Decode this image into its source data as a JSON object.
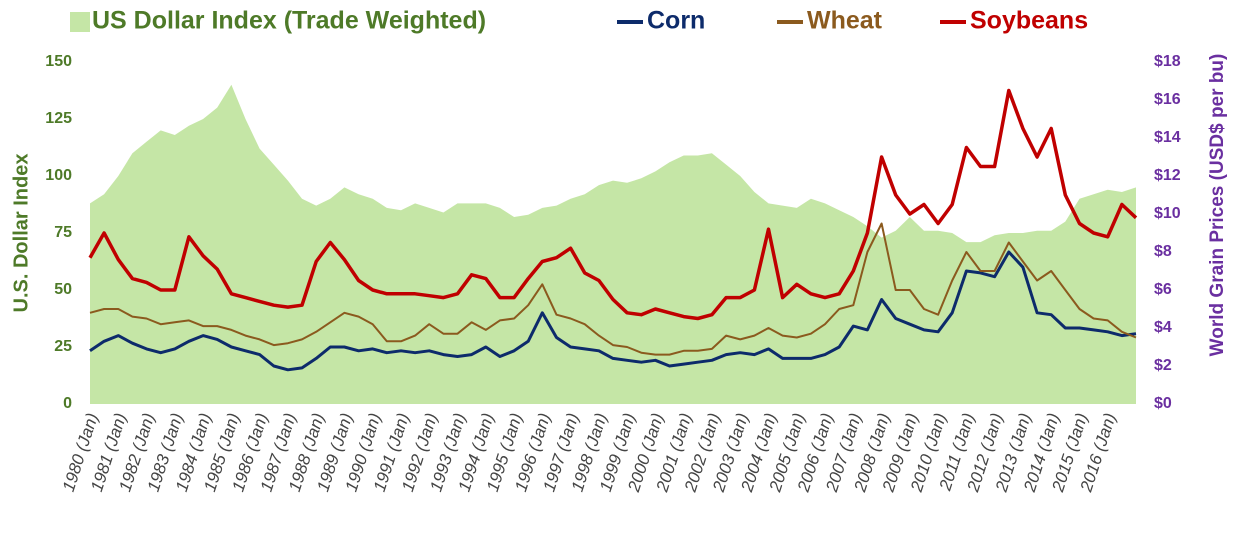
{
  "chart_data": {
    "type": "line",
    "y_label": "U.S. Dollar Index",
    "y2_label": "World Grain Prices (USD$ per bu)",
    "legend": "top",
    "grid": false,
    "categories": [
      "1980 (Jan)",
      null,
      "1981 (Jan)",
      null,
      "1982 (Jan)",
      null,
      "1983 (Jan)",
      null,
      "1984 (Jan)",
      null,
      "1985 (Jan)",
      null,
      "1986 (Jan)",
      null,
      "1987 (Jan)",
      null,
      "1988 (Jan)",
      null,
      "1989 (Jan)",
      null,
      "1990 (Jan)",
      null,
      "1991 (Jan)",
      null,
      "1992 (Jan)",
      null,
      "1993 (Jan)",
      null,
      "1994 (Jan)",
      null,
      "1995 (Jan)",
      null,
      "1996 (Jan)",
      null,
      "1997 (Jan)",
      null,
      "1998 (Jan)",
      null,
      "1999 (Jan)",
      null,
      "2000 (Jan)",
      null,
      "2001 (Jan)",
      null,
      "2002 (Jan)",
      null,
      "2003 (Jan)",
      null,
      "2004 (Jan)",
      null,
      "2005 (Jan)",
      null,
      "2006 (Jan)",
      null,
      "2007 (Jan)",
      null,
      "2008 (Jan)",
      null,
      "2009 (Jan)",
      null,
      "2010 (Jan)",
      null,
      "2011 (Jan)",
      null,
      "2012 (Jan)",
      null,
      "2013 (Jan)",
      null,
      "2014 (Jan)",
      null,
      "2015 (Jan)",
      null,
      "2016 (Jan)",
      null,
      null
    ],
    "ylim": [
      0,
      150
    ],
    "yticks": [
      0,
      25,
      50,
      75,
      100,
      125,
      150
    ],
    "y2lim": [
      0,
      18
    ],
    "y2ticks": [
      {
        "value": 0,
        "label": "$0"
      },
      {
        "value": 2,
        "label": "$2"
      },
      {
        "value": 4,
        "label": "$4"
      },
      {
        "value": 6,
        "label": "$6"
      },
      {
        "value": 8,
        "label": "$8"
      },
      {
        "value": 10,
        "label": "$10"
      },
      {
        "value": 12,
        "label": "$12"
      },
      {
        "value": 14,
        "label": "$14"
      },
      {
        "value": 16,
        "label": "$16"
      },
      {
        "value": 18,
        "label": "$18"
      }
    ],
    "series": [
      {
        "name": "US Dollar Index (Trade Weighted)",
        "type": "area",
        "color": "#c5e6a6",
        "values": [
          88,
          92,
          100,
          110,
          115,
          120,
          118,
          122,
          125,
          130,
          140,
          125,
          112,
          105,
          98,
          90,
          87,
          90,
          95,
          92,
          90,
          86,
          85,
          88,
          86,
          84,
          88,
          88,
          88,
          86,
          82,
          83,
          86,
          87,
          90,
          92,
          96,
          98,
          97,
          99,
          102,
          106,
          109,
          109,
          110,
          105,
          100,
          93,
          88,
          87,
          86,
          90,
          88,
          85,
          82,
          78,
          73,
          76,
          82,
          76,
          76,
          75,
          71,
          71,
          74,
          75,
          75,
          76,
          76,
          80,
          90,
          92,
          94,
          93,
          95
        ]
      },
      {
        "name": "Corn",
        "type": "line",
        "axis": "y2",
        "color": "#0d2b6b",
        "values": [
          2.8,
          3.3,
          3.6,
          3.2,
          2.9,
          2.7,
          2.9,
          3.3,
          3.6,
          3.4,
          3.0,
          2.8,
          2.6,
          2.0,
          1.8,
          1.9,
          2.4,
          3.0,
          3.0,
          2.8,
          2.9,
          2.7,
          2.8,
          2.7,
          2.8,
          2.6,
          2.5,
          2.6,
          3.0,
          2.5,
          2.8,
          3.3,
          4.8,
          3.5,
          3.0,
          2.9,
          2.8,
          2.4,
          2.3,
          2.2,
          2.3,
          2.0,
          2.1,
          2.2,
          2.3,
          2.6,
          2.7,
          2.6,
          2.9,
          2.4,
          2.4,
          2.4,
          2.6,
          3.0,
          4.1,
          3.9,
          5.5,
          4.5,
          4.2,
          3.9,
          3.8,
          4.8,
          7.0,
          6.9,
          6.7,
          8.0,
          7.2,
          4.8,
          4.7,
          4.0,
          4.0,
          3.9,
          3.8,
          3.6,
          3.7
        ]
      },
      {
        "name": "Wheat",
        "type": "line",
        "axis": "y2",
        "color": "#8b5a1e",
        "values": [
          4.8,
          5.0,
          5.0,
          4.6,
          4.5,
          4.2,
          4.3,
          4.4,
          4.1,
          4.1,
          3.9,
          3.6,
          3.4,
          3.1,
          3.2,
          3.4,
          3.8,
          4.3,
          4.8,
          4.6,
          4.2,
          3.3,
          3.3,
          3.6,
          4.2,
          3.7,
          3.7,
          4.3,
          3.9,
          4.4,
          4.5,
          5.2,
          6.3,
          4.7,
          4.5,
          4.2,
          3.6,
          3.1,
          3.0,
          2.7,
          2.6,
          2.6,
          2.8,
          2.8,
          2.9,
          3.6,
          3.4,
          3.6,
          4.0,
          3.6,
          3.5,
          3.7,
          4.2,
          5.0,
          5.2,
          8.0,
          9.5,
          6.0,
          6.0,
          5.0,
          4.7,
          6.5,
          8.0,
          7.0,
          7.0,
          8.5,
          7.5,
          6.5,
          7.0,
          6.0,
          5.0,
          4.5,
          4.4,
          3.8,
          3.5
        ]
      },
      {
        "name": "Soybeans",
        "type": "line",
        "axis": "y2",
        "color": "#c00000",
        "values": [
          7.7,
          9.0,
          7.6,
          6.6,
          6.4,
          6.0,
          6.0,
          8.8,
          7.8,
          7.1,
          5.8,
          5.6,
          5.4,
          5.2,
          5.1,
          5.2,
          7.5,
          8.5,
          7.6,
          6.5,
          6.0,
          5.8,
          5.8,
          5.8,
          5.7,
          5.6,
          5.8,
          6.8,
          6.6,
          5.6,
          5.6,
          6.6,
          7.5,
          7.7,
          8.2,
          6.9,
          6.5,
          5.5,
          4.8,
          4.7,
          5.0,
          4.8,
          4.6,
          4.5,
          4.7,
          5.6,
          5.6,
          6.0,
          9.2,
          5.6,
          6.3,
          5.8,
          5.6,
          5.8,
          7.0,
          9.0,
          13.0,
          11.0,
          10.0,
          10.5,
          9.5,
          10.5,
          13.5,
          12.5,
          12.5,
          16.5,
          14.5,
          13.0,
          14.5,
          11.0,
          9.5,
          9.0,
          8.8,
          10.5,
          9.8
        ]
      }
    ]
  }
}
